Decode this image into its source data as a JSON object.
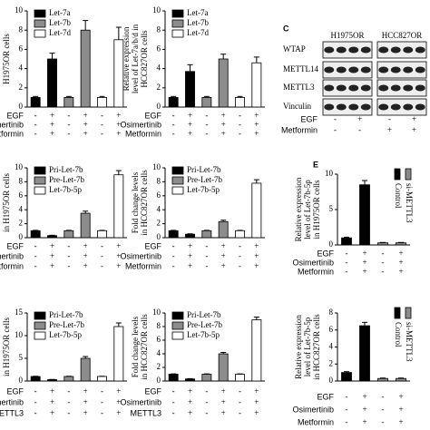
{
  "chart_data": [
    {
      "type": "bar",
      "y_label": [
        "H1975OR cells"
      ],
      "ylim": [
        0,
        10
      ],
      "yticks": [
        0,
        2,
        4,
        6,
        8,
        10
      ],
      "legend": "upper left",
      "series": [
        {
          "name": "Let-7a",
          "color": "#000000",
          "values": [
            1,
            5
          ],
          "errors": [
            0.1,
            0.6
          ]
        },
        {
          "name": "Let-7b",
          "color": "#8c8c8c",
          "values": [
            1,
            8
          ],
          "errors": [
            0.1,
            1
          ]
        },
        {
          "name": "Let-7d",
          "color": "#ffffff",
          "values": [
            1,
            7
          ],
          "errors": [
            0.1,
            1.3
          ]
        }
      ],
      "conditions": [
        {
          "name": "EGF",
          "signs": [
            "-",
            "+",
            "-",
            "+",
            "-",
            "+"
          ]
        },
        {
          "name": "Osimertinib",
          "signs": [
            "-",
            "+",
            "-",
            "+",
            "-",
            "+"
          ]
        },
        {
          "name": "Metformin",
          "signs": [
            "-",
            "+",
            "-",
            "+",
            "-",
            "+"
          ]
        }
      ]
    },
    {
      "type": "bar",
      "y_label": [
        "Relative expression",
        "level of Let-7a/b/d in",
        "HCC827OR cells"
      ],
      "ylim": [
        0,
        10
      ],
      "yticks": [
        0,
        2,
        4,
        6,
        8,
        10
      ],
      "legend": "upper left",
      "series": [
        {
          "name": "Let-7a",
          "color": "#000000",
          "values": [
            1,
            3.7
          ],
          "errors": [
            0.1,
            0.7
          ]
        },
        {
          "name": "Let-7b",
          "color": "#8c8c8c",
          "values": [
            1,
            5
          ],
          "errors": [
            0.1,
            0.5
          ]
        },
        {
          "name": "Let-7d",
          "color": "#ffffff",
          "values": [
            1,
            4.6
          ],
          "errors": [
            0.1,
            0.6
          ]
        }
      ],
      "conditions": [
        {
          "name": "EGF",
          "signs": [
            "-",
            "+",
            "-",
            "+",
            "-",
            "+"
          ]
        },
        {
          "name": "Osimertinib",
          "signs": [
            "-",
            "+",
            "-",
            "+",
            "-",
            "+"
          ]
        },
        {
          "name": "Metformin",
          "signs": [
            "-",
            "+",
            "-",
            "+",
            "-",
            "+"
          ]
        }
      ]
    },
    {
      "type": "bar",
      "y_label": [
        "in H1975OR cells"
      ],
      "ylim": [
        0,
        10
      ],
      "yticks": [
        0,
        2,
        4,
        6,
        8,
        10
      ],
      "legend": "upper left",
      "series": [
        {
          "name": "Pri-Let-7b",
          "color": "#000000",
          "values": [
            1,
            0.3
          ],
          "errors": [
            0.05,
            0.05
          ]
        },
        {
          "name": "Pre-Let-7b",
          "color": "#8c8c8c",
          "values": [
            1,
            3.5
          ],
          "errors": [
            0.05,
            0.3
          ]
        },
        {
          "name": "Let-7b-5p",
          "color": "#ffffff",
          "values": [
            1,
            9
          ],
          "errors": [
            0.05,
            0.6
          ]
        }
      ],
      "conditions": [
        {
          "name": "EGF",
          "signs": [
            "-",
            "+",
            "-",
            "+",
            "-",
            "+"
          ]
        },
        {
          "name": "Osimertinib",
          "signs": [
            "-",
            "+",
            "-",
            "+",
            "-",
            "+"
          ]
        },
        {
          "name": "Metformin",
          "signs": [
            "-",
            "+",
            "-",
            "+",
            "-",
            "+"
          ]
        }
      ]
    },
    {
      "type": "bar",
      "y_label": [
        "Fold change levels",
        "in HCC827OR cells"
      ],
      "ylim": [
        0,
        10
      ],
      "yticks": [
        0,
        2,
        4,
        6,
        8,
        10
      ],
      "legend": "upper left",
      "series": [
        {
          "name": "Pri-Let-7b",
          "color": "#000000",
          "values": [
            1,
            0.5
          ],
          "errors": [
            0.05,
            0.05
          ]
        },
        {
          "name": "Pre-Let-7b",
          "color": "#8c8c8c",
          "values": [
            1,
            2.3
          ],
          "errors": [
            0.05,
            0.2
          ]
        },
        {
          "name": "Let-7b-5p",
          "color": "#ffffff",
          "values": [
            1,
            7.8
          ],
          "errors": [
            0.05,
            0.5
          ]
        }
      ],
      "conditions": [
        {
          "name": "EGF",
          "signs": [
            "-",
            "+",
            "-",
            "+",
            "-",
            "+"
          ]
        },
        {
          "name": "Osimertinib",
          "signs": [
            "-",
            "+",
            "-",
            "+",
            "-",
            "+"
          ]
        },
        {
          "name": "Metformin",
          "signs": [
            "-",
            "+",
            "-",
            "+",
            "-",
            "+"
          ]
        }
      ]
    },
    {
      "type": "bar",
      "panel_label": "E",
      "y_label": [
        "Relative expression",
        "level of Let-7b-5p",
        "in H1975OR cells"
      ],
      "ylim": [
        0,
        10
      ],
      "yticks": [
        0,
        5,
        10
      ],
      "legend": "upper right",
      "series": [
        {
          "name": "Control",
          "color": "#000000",
          "values": [
            1,
            8.5
          ],
          "errors": [
            0.1,
            0.6
          ]
        },
        {
          "name": "si-METTL3",
          "color": "#8c8c8c",
          "values": [
            0.3,
            0.3
          ],
          "errors": [
            0.05,
            0.05
          ]
        }
      ],
      "conditions": [
        {
          "name": "EGF",
          "signs": [
            "-",
            "+",
            "-",
            "+"
          ]
        },
        {
          "name": "Osimertinib",
          "signs": [
            "-",
            "+",
            "-",
            "+"
          ]
        },
        {
          "name": "Metformin",
          "signs": [
            "-",
            "+",
            "-",
            "+"
          ]
        }
      ]
    },
    {
      "type": "bar",
      "y_label": [
        "in H1975OR cells"
      ],
      "ylim": [
        0,
        15
      ],
      "yticks": [
        0,
        5,
        10,
        15
      ],
      "legend": "upper left",
      "series": [
        {
          "name": "Pri-Let-7b",
          "color": "#000000",
          "values": [
            1,
            0.3
          ],
          "errors": [
            0.05,
            0.05
          ]
        },
        {
          "name": "Pre-Let-7b",
          "color": "#8c8c8c",
          "values": [
            1,
            5
          ],
          "errors": [
            0.05,
            0.4
          ]
        },
        {
          "name": "Let-7b-5p",
          "color": "#ffffff",
          "values": [
            1,
            12
          ],
          "errors": [
            0.05,
            0.8
          ]
        }
      ],
      "conditions": [
        {
          "name": "EGF",
          "signs": [
            "-",
            "+",
            "-",
            "+",
            "-",
            "+"
          ]
        },
        {
          "name": "Osimertinib",
          "signs": [
            "-",
            "+",
            "-",
            "+",
            "-",
            "+"
          ]
        },
        {
          "name": "METTL3",
          "signs": [
            "-",
            "+",
            "-",
            "+",
            "-",
            "+"
          ]
        }
      ]
    },
    {
      "type": "bar",
      "y_label": [
        "Fold change levels",
        "in HCC827OR cells"
      ],
      "ylim": [
        0,
        10
      ],
      "yticks": [
        0,
        2,
        4,
        6,
        8,
        10
      ],
      "legend": "upper left",
      "series": [
        {
          "name": "Pri-Let-7b",
          "color": "#000000",
          "values": [
            1,
            0.3
          ],
          "errors": [
            0.05,
            0.05
          ]
        },
        {
          "name": "Pre-Let-7b",
          "color": "#8c8c8c",
          "values": [
            1,
            4
          ],
          "errors": [
            0.05,
            0.2
          ]
        },
        {
          "name": "Let-7b-5p",
          "color": "#ffffff",
          "values": [
            1,
            9
          ],
          "errors": [
            0.05,
            0.4
          ]
        }
      ],
      "conditions": [
        {
          "name": "EGF",
          "signs": [
            "-",
            "+",
            "-",
            "+",
            "-",
            "+"
          ]
        },
        {
          "name": "Osimertinib",
          "signs": [
            "-",
            "+",
            "-",
            "+",
            "-",
            "+"
          ]
        },
        {
          "name": "METTL3",
          "signs": [
            "-",
            "+",
            "-",
            "+",
            "-",
            "+"
          ]
        }
      ]
    },
    {
      "type": "bar",
      "y_label": [
        "Relative expression",
        "level of Let-7b-5p",
        "in HCC827OR cells"
      ],
      "ylim": [
        0,
        8
      ],
      "yticks": [
        0,
        2,
        4,
        6,
        8
      ],
      "legend": "upper right",
      "series": [
        {
          "name": "Control",
          "color": "#000000",
          "values": [
            1,
            6.5
          ],
          "errors": [
            0.1,
            0.4
          ]
        },
        {
          "name": "si-METTL3",
          "color": "#8c8c8c",
          "values": [
            0.3,
            0.3
          ],
          "errors": [
            0.05,
            0.05
          ]
        }
      ],
      "conditions": [
        {
          "name": "EGF",
          "signs": [
            "-",
            "+",
            "-",
            "+"
          ]
        },
        {
          "name": "Osimertinib",
          "signs": [
            "-",
            "+",
            "-",
            "+"
          ]
        },
        {
          "name": "Metformin",
          "signs": [
            "-",
            "+",
            "-",
            "+"
          ]
        }
      ]
    }
  ],
  "blot": {
    "label": "C",
    "columns": [
      "H1975OR",
      "HCC827OR"
    ],
    "proteins": [
      "WTAP",
      "METTL14",
      "METTL3",
      "Vinculin"
    ],
    "conditions": [
      {
        "name": "EGF",
        "signs": [
          "-",
          "+",
          "-",
          "+"
        ]
      },
      {
        "name": "Metformin",
        "signs": [
          "-",
          "-",
          "+",
          "+"
        ]
      }
    ]
  }
}
